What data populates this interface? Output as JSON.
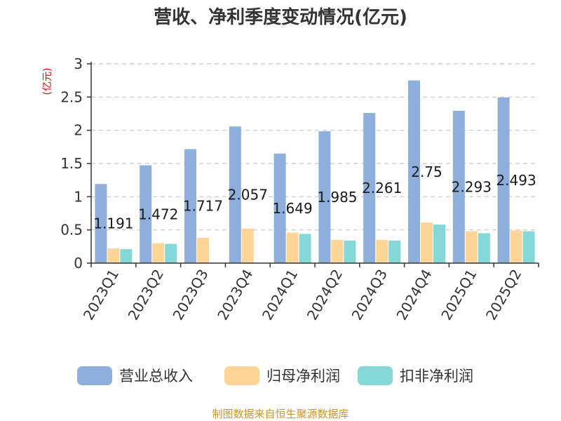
{
  "chart_data": {
    "type": "bar",
    "title": "营收、净利季度变动情况(亿元)",
    "ylabel": "(亿元)",
    "ylim": [
      0,
      3
    ],
    "yticks": [
      "0",
      "0.5",
      "1",
      "1.5",
      "2",
      "2.5",
      "3"
    ],
    "grid": true,
    "legend_position": "bottom",
    "categories": [
      "2023Q1",
      "2023Q2",
      "2023Q3",
      "2023Q4",
      "2024Q1",
      "2024Q2",
      "2024Q3",
      "2024Q4",
      "2025Q1",
      "2025Q2"
    ],
    "series": [
      {
        "name": "营业总收入",
        "color": "#8eaedb",
        "values": [
          1.191,
          1.472,
          1.717,
          2.057,
          1.649,
          1.985,
          2.261,
          2.75,
          2.293,
          2.493
        ]
      },
      {
        "name": "归母净利润",
        "color": "#fcd597",
        "values": [
          0.22,
          0.3,
          0.38,
          0.52,
          0.46,
          0.35,
          0.35,
          0.61,
          0.48,
          0.49
        ]
      },
      {
        "name": "扣非净利润",
        "color": "#84d8d7",
        "values": [
          0.21,
          0.29,
          null,
          null,
          0.44,
          0.34,
          0.34,
          0.58,
          0.45,
          0.48
        ]
      }
    ],
    "data_labels": [
      "1.191",
      "1.472",
      "1.717",
      "2.057",
      "1.649",
      "1.985",
      "2.261",
      "2.75",
      "2.293",
      "2.493"
    ],
    "source": "制图数据来自恒生聚源数据库"
  }
}
